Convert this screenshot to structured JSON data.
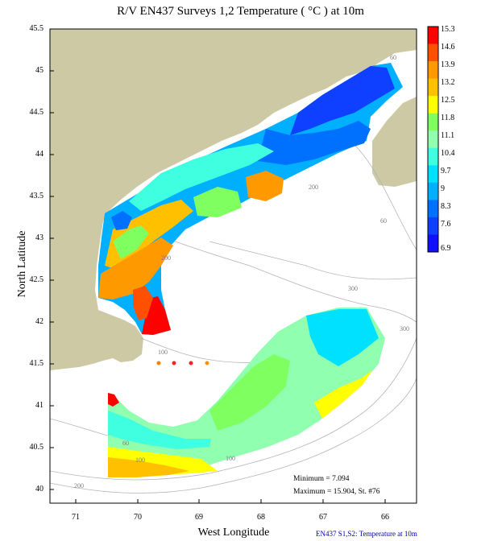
{
  "title": "R/V EN437 Surveys 1,2 Temperature ( °C ) at 10m",
  "axes": {
    "xlabel": "West Longitude",
    "ylabel": "North Latitude",
    "lon_ticks": [
      "71",
      "70",
      "69",
      "68",
      "67",
      "66"
    ],
    "lat_ticks": [
      "45.5",
      "45",
      "44.5",
      "44",
      "43.5",
      "43",
      "42.5",
      "42",
      "41.5",
      "41",
      "40.5",
      "40"
    ]
  },
  "colorbar": {
    "labels": [
      "15.3",
      "14.6",
      "13.9",
      "13.2",
      "12.5",
      "11.8",
      "11.1",
      "10.4",
      "9.7",
      "9",
      "8.3",
      "7.6",
      "6.9"
    ],
    "colors": [
      "#ff0000",
      "#ff5000",
      "#ff9900",
      "#ffc000",
      "#ffff00",
      "#80ff60",
      "#90ffb0",
      "#40ffe0",
      "#00e0ff",
      "#00b0ff",
      "#0070ff",
      "#1040ff",
      "#1010ff"
    ]
  },
  "bathymetry_labels": [
    "60",
    "200",
    "60",
    "100",
    "200",
    "300",
    "300",
    "100",
    "60",
    "100",
    "200"
  ],
  "stats": {
    "minimum": "Minimum = 7.094",
    "maximum": "Maximum = 15.904, St. #76"
  },
  "footer": "EN437  S1,S2: Temperature at 10m"
}
